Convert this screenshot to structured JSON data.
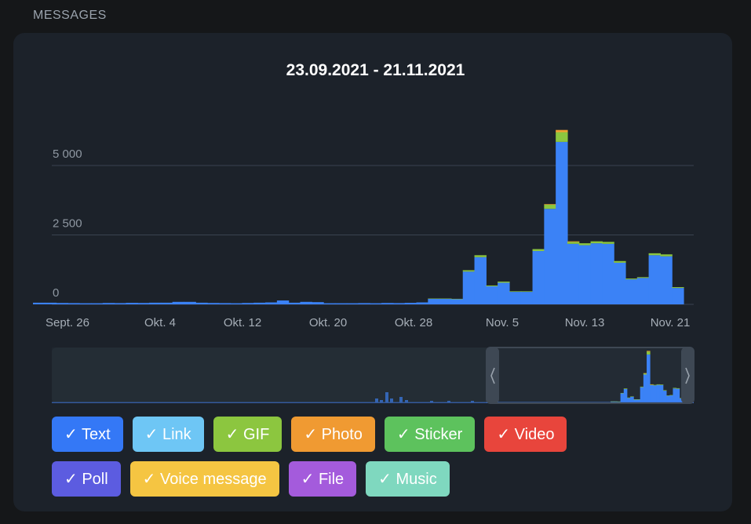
{
  "section_title": "MESSAGES",
  "chart_title": "23.09.2021 - 21.11.2021",
  "colors": {
    "text": "#3b82f6",
    "gif": "#8cc63f",
    "photo": "#f0a030",
    "grid": "#3a4350",
    "navigator_window": "#2a323c"
  },
  "chart_data": {
    "type": "bar",
    "stacked": true,
    "title": "23.09.2021 - 21.11.2021",
    "ylim": [
      0,
      6500
    ],
    "yticks": [
      {
        "value": 0,
        "label": "0"
      },
      {
        "value": 2500,
        "label": "2 500"
      },
      {
        "value": 5000,
        "label": "5 000"
      }
    ],
    "xticks": [
      "Sept. 26",
      "Okt. 4",
      "Okt. 12",
      "Okt. 20",
      "Okt. 28",
      "Nov. 5",
      "Nov. 13",
      "Nov. 21"
    ],
    "x_start": "2021-09-23",
    "x_end": "2021-11-21",
    "series": [
      {
        "name": "Text",
        "color": "#3b82f6",
        "values": [
          60,
          60,
          50,
          45,
          40,
          40,
          50,
          45,
          55,
          50,
          60,
          60,
          90,
          90,
          60,
          50,
          45,
          40,
          50,
          60,
          70,
          140,
          60,
          90,
          80,
          40,
          40,
          40,
          45,
          40,
          50,
          45,
          55,
          70,
          200,
          200,
          190,
          1180,
          1700,
          650,
          780,
          450,
          450,
          1920,
          3440,
          5850,
          2180,
          2130,
          2200,
          2180,
          1500,
          900,
          950,
          1770,
          1730,
          590
        ]
      },
      {
        "name": "GIF",
        "color": "#8cc63f",
        "values": [
          0,
          0,
          0,
          0,
          0,
          0,
          0,
          0,
          0,
          0,
          0,
          0,
          0,
          0,
          0,
          0,
          0,
          0,
          0,
          0,
          0,
          0,
          0,
          0,
          0,
          0,
          0,
          0,
          0,
          0,
          0,
          0,
          0,
          0,
          10,
          10,
          10,
          50,
          70,
          30,
          40,
          20,
          20,
          70,
          150,
          350,
          70,
          70,
          70,
          70,
          60,
          30,
          30,
          70,
          70,
          30
        ]
      },
      {
        "name": "Photo",
        "color": "#f0a030",
        "values": [
          0,
          0,
          0,
          0,
          0,
          0,
          0,
          0,
          0,
          0,
          0,
          0,
          0,
          0,
          0,
          0,
          0,
          0,
          0,
          0,
          0,
          0,
          0,
          0,
          0,
          0,
          0,
          0,
          0,
          0,
          0,
          0,
          0,
          0,
          0,
          0,
          0,
          0,
          0,
          0,
          0,
          0,
          0,
          0,
          20,
          80,
          20,
          0,
          0,
          0,
          0,
          0,
          0,
          0,
          0,
          0
        ]
      }
    ]
  },
  "filters": [
    {
      "label": "✓ Text",
      "color": "#3478f6"
    },
    {
      "label": "✓ Link",
      "color": "#6ec6f5"
    },
    {
      "label": "✓ GIF",
      "color": "#8cc63f"
    },
    {
      "label": "✓ Photo",
      "color": "#f09a32"
    },
    {
      "label": "✓ Sticker",
      "color": "#5dc25d"
    },
    {
      "label": "✓ Video",
      "color": "#e8453c"
    },
    {
      "label": "✓ Poll",
      "color": "#5c5ce0"
    },
    {
      "label": "✓ Voice message",
      "color": "#f5c542"
    },
    {
      "label": "✓ File",
      "color": "#a45bdc"
    },
    {
      "label": "✓ Music",
      "color": "#7fd8bf"
    }
  ]
}
